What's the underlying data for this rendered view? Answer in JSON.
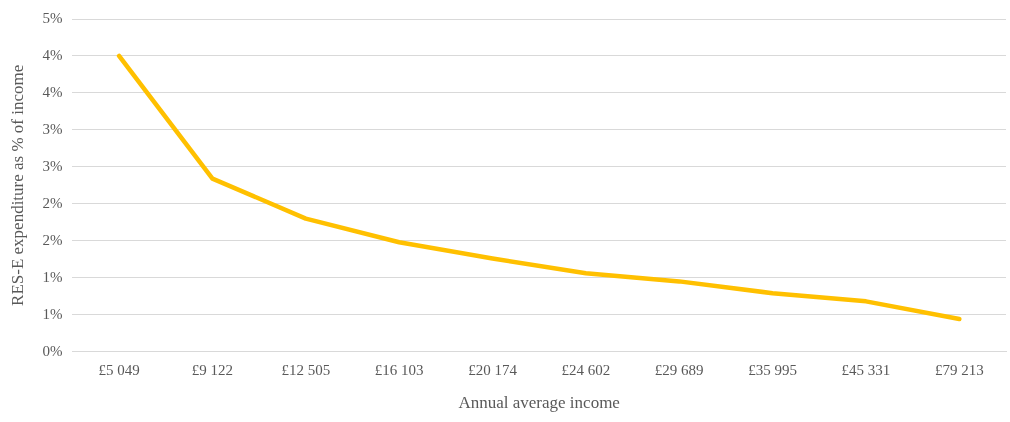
{
  "chart_data": {
    "type": "line",
    "xlabel": "Annual average income",
    "ylabel": "RES-E expenditure as % of income",
    "categories": [
      "£5 049",
      "£9 122",
      "£12 505",
      "£16 103",
      "£20 174",
      "£24 602",
      "£29 689",
      "£35 995",
      "£45 331",
      "£79 213"
    ],
    "series": [
      {
        "color": "#ffc000",
        "values": [
          4.0,
          2.34,
          1.8,
          1.48,
          1.26,
          1.06,
          0.95,
          0.79,
          0.68,
          0.44
        ]
      }
    ],
    "ylim": [
      0,
      4.5
    ],
    "yticks": [
      {
        "value": 0,
        "label": "0%"
      },
      {
        "value": 0.5,
        "label": "1%"
      },
      {
        "value": 1,
        "label": "1%"
      },
      {
        "value": 1.5,
        "label": "2%"
      },
      {
        "value": 2,
        "label": "2%"
      },
      {
        "value": 2.5,
        "label": "3%"
      },
      {
        "value": 3,
        "label": "3%"
      },
      {
        "value": 3.5,
        "label": "4%"
      },
      {
        "value": 4,
        "label": "4%"
      },
      {
        "value": 4.5,
        "label": "5%"
      }
    ],
    "grid": "y",
    "legend": false,
    "marker": "none",
    "line_style": "solid"
  }
}
